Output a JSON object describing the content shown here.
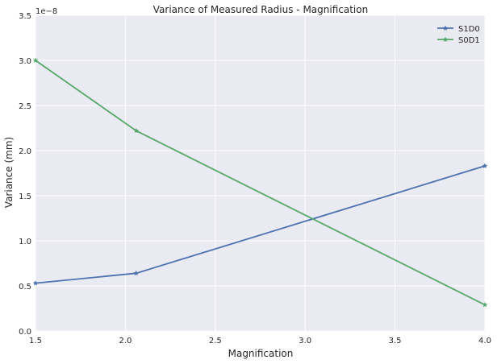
{
  "chart_data": {
    "type": "line",
    "title": "Variance of Measured Radius - Magnification",
    "xlabel": "Magnification",
    "ylabel": "Variance (mm)",
    "y_offset_label": "1e−8",
    "xlim": [
      1.5,
      4.0
    ],
    "ylim": [
      0.0,
      3.5
    ],
    "x_ticks": [
      "1.5",
      "2.0",
      "2.5",
      "3.0",
      "3.5",
      "4.0"
    ],
    "y_ticks": [
      "0.0",
      "0.5",
      "1.0",
      "1.5",
      "2.0",
      "2.5",
      "3.0",
      "3.5"
    ],
    "grid": true,
    "legend_position": "top-right",
    "series": [
      {
        "name": "S1D0",
        "color": "#4c72b0",
        "marker": "star",
        "x": [
          1.5,
          2.06,
          4.0
        ],
        "y": [
          0.53,
          0.64,
          1.83
        ]
      },
      {
        "name": "S0D1",
        "color": "#55a868",
        "marker": "star",
        "x": [
          1.5,
          2.06,
          4.0
        ],
        "y": [
          3.0,
          2.22,
          0.29
        ]
      }
    ]
  }
}
